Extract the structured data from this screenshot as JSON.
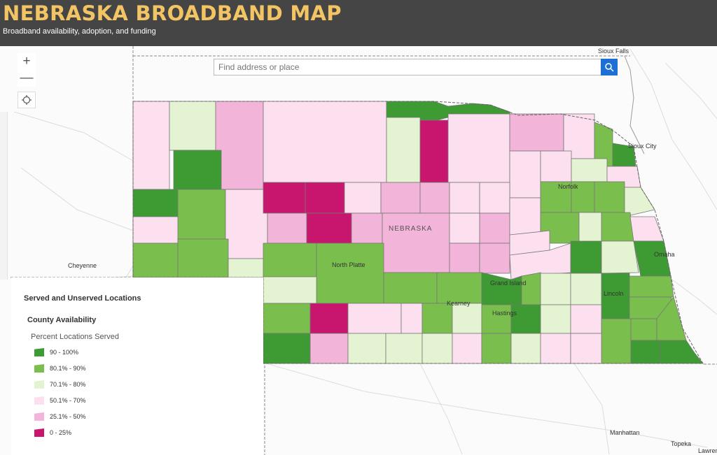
{
  "header": {
    "title": "NEBRASKA BROADBAND MAP",
    "subtitle": "Broadband availability, adoption, and funding"
  },
  "search": {
    "placeholder": "Find address or place"
  },
  "controls": {
    "zoom_in": "+",
    "zoom_out": "—"
  },
  "map_labels": {
    "state": "NEBRASKA",
    "cities": {
      "sioux_falls": "Sioux Falls",
      "sioux_city": "Sioux City",
      "norfolk": "Norfolk",
      "cheyenne": "Cheyenne",
      "north_platte": "North Platte",
      "grand_island": "Grand Island",
      "kearney": "Kearney",
      "hastings": "Hastings",
      "lincoln": "Lincoln",
      "omaha": "Omaha",
      "manhattan": "Manhattan",
      "topeka": "Topeka",
      "lawrence": "Lawren"
    }
  },
  "legend": {
    "heading": "Served and Unserved Locations",
    "layer": "County Availability",
    "field": "Percent Locations Served",
    "classes": [
      {
        "label": "90 - 100%",
        "color": "#3e9a33"
      },
      {
        "label": "80.1% - 90%",
        "color": "#7abf4d"
      },
      {
        "label": "70.1% - 80%",
        "color": "#e4f4d3"
      },
      {
        "label": "50.1% - 70%",
        "color": "#fde0ef"
      },
      {
        "label": "25.1% - 50%",
        "color": "#f2b4d8"
      },
      {
        "label": "0 - 25%",
        "color": "#c8166f"
      }
    ]
  }
}
